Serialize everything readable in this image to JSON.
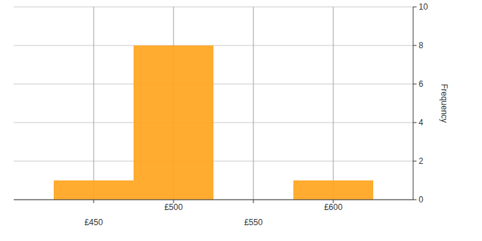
{
  "chart_data": {
    "type": "histogram",
    "bins": [
      425,
      475,
      525,
      575,
      625
    ],
    "values": [
      1,
      8,
      0,
      1
    ],
    "color": "#ffa31a",
    "y_label": "Frequency",
    "xlim": [
      400,
      650
    ],
    "xticks": [
      {
        "value": 450,
        "label": "£450"
      },
      {
        "value": 500,
        "label": "£500"
      },
      {
        "value": 550,
        "label": "£550"
      },
      {
        "value": 600,
        "label": "£600"
      }
    ],
    "ylim": [
      0,
      10
    ],
    "yticks": [
      0,
      2,
      4,
      6,
      8,
      10
    ],
    "grid": true
  }
}
